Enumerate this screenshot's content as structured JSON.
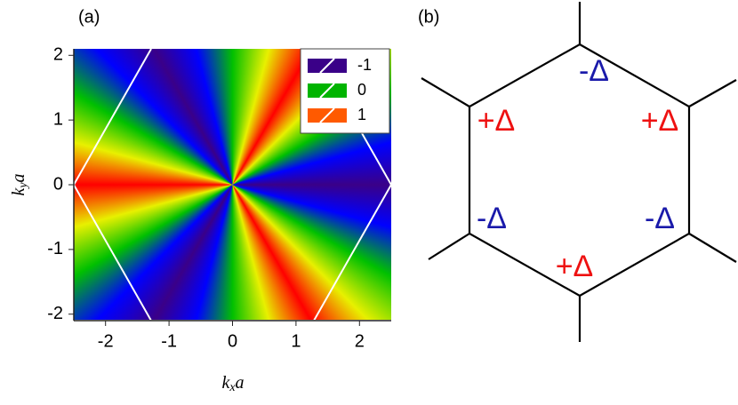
{
  "chart_data": {
    "type": "heatmap",
    "panel_label": "(a)",
    "x_label": {
      "base": "k",
      "sub": "x",
      "rest": "a"
    },
    "y_label": {
      "base": "k",
      "sub": "y",
      "rest": "a"
    },
    "xlim": [
      -2.5,
      2.5
    ],
    "ylim": [
      -2.1,
      2.1
    ],
    "xticks": [
      -2,
      -1,
      0,
      1,
      2
    ],
    "yticks": [
      -2,
      -1,
      0,
      1,
      2
    ],
    "legend": [
      {
        "label": "-1",
        "color": "#3a0088"
      },
      {
        "label": "0",
        "color": "#00b400"
      },
      {
        "label": "1",
        "color": "#ff5a00"
      }
    ]
  },
  "diagram": {
    "panel_label": "(b)",
    "labels": [
      {
        "text": "-Δ",
        "color": "#1a1aaa"
      },
      {
        "text": "+Δ",
        "color": "#ee1111"
      },
      {
        "text": "-Δ",
        "color": "#1a1aaa"
      },
      {
        "text": "+Δ",
        "color": "#ee1111"
      },
      {
        "text": "-Δ",
        "color": "#1a1aaa"
      },
      {
        "text": "+Δ",
        "color": "#ee1111"
      }
    ]
  }
}
